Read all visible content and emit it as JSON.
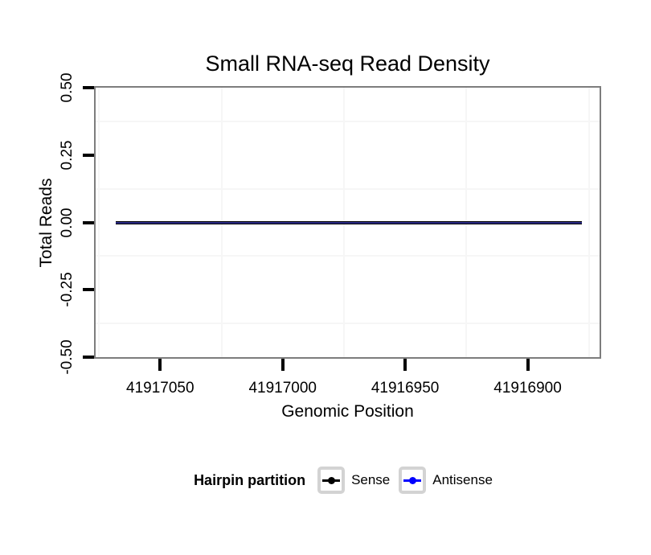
{
  "colors": {
    "panel_border": "#7d7d7d",
    "grid_minor": "#f6f6f6",
    "tick_mark": "#000000",
    "legend_key_border": "#d3d3d3",
    "overlap_line_center": "#2b2b85",
    "sense": "#000000",
    "antisense": "#0000ff"
  },
  "legend": {
    "title": "Hairpin partition",
    "entries": [
      {
        "label": "Sense",
        "color": "#000000",
        "glyph": "line-with-point-icon"
      },
      {
        "label": "Antisense",
        "color": "#0000ff",
        "glyph": "line-with-point-icon"
      }
    ]
  },
  "chart_data": {
    "type": "line",
    "title": "Small RNA-seq Read Density",
    "xlabel": "Genomic Position",
    "ylabel": "Total Reads",
    "x_axis": {
      "reversed": true,
      "range": [
        41917077,
        41916870
      ],
      "ticks": [
        41917050,
        41917000,
        41916950,
        41916900
      ],
      "tick_labels": [
        "41917050",
        "41917000",
        "41916950",
        "41916900"
      ]
    },
    "y_axis": {
      "range": [
        -0.505,
        0.505
      ],
      "ticks": [
        0.5,
        0.25,
        0.0,
        -0.25,
        -0.5
      ],
      "tick_labels": [
        "0.50",
        "0.25",
        "0.00",
        "-0.25",
        "-0.50"
      ]
    },
    "grid": {
      "major_visible": false,
      "minor_x": [
        41917075,
        41917025,
        41916975,
        41916925,
        41916875
      ],
      "minor_y": [
        0.375,
        0.125,
        -0.125,
        -0.375
      ]
    },
    "series": [
      {
        "name": "Sense",
        "color": "#000000",
        "x": [
          41917068,
          41916878
        ],
        "y": [
          0,
          0
        ]
      },
      {
        "name": "Antisense",
        "color": "#0000ff",
        "x": [
          41917068,
          41916878
        ],
        "y": [
          0,
          0
        ]
      }
    ],
    "legend_title": "Hairpin partition",
    "legend_position": "bottom"
  }
}
